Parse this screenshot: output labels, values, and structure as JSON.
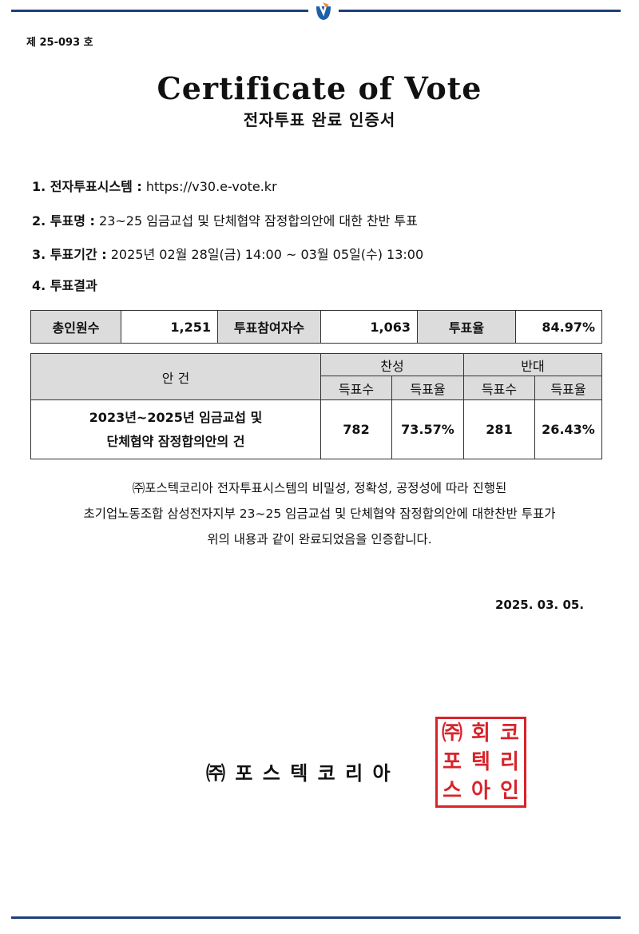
{
  "header": {
    "doc_number": "제 25-093 호",
    "title": "Certificate of Vote",
    "subtitle": "전자투표 완료 인증서",
    "rule_color": "#1f3f7a"
  },
  "items": [
    {
      "label": "1. 전자투표시스템 :",
      "value": "https://v30.e-vote.kr"
    },
    {
      "label": "2. 투표명 :",
      "value": "23~25 임금교섭 및 단체협약 잠정합의안에 대한 찬반 투표"
    },
    {
      "label": "3. 투표기간 :",
      "value": "2025년 02월 28일(금) 14:00 ~ 03월 05일(수) 13:00"
    },
    {
      "label": "4. 투표결과",
      "value": ""
    }
  ],
  "summary": {
    "total_label": "총인원수",
    "total": "1,251",
    "participants_label": "투표참여자수",
    "participants": "1,063",
    "rate_label": "투표율",
    "rate": "84.97%"
  },
  "results": {
    "agenda_header": "안 건",
    "yes_header": "찬성",
    "no_header": "반대",
    "sub_headers": [
      "득표수",
      "득표율",
      "득표수",
      "득표율"
    ],
    "rows": [
      {
        "agenda_line1": "2023년~2025년 임금교섭 및",
        "agenda_line2": "단체협약 잠정합의안의 건",
        "yes_votes": "782",
        "yes_rate": "73.57%",
        "no_votes": "281",
        "no_rate": "26.43%"
      }
    ]
  },
  "statement": [
    "㈜포스텍코리아 전자투표시스템의 비밀성, 정확성, 공정성에 따라 진행된",
    "초기업노동조합 삼성전자지부 23~25 임금교섭 및 단체협약 잠정합의안에 대한찬반 투표가",
    "위의 내용과 같이 완료되었음을 인증합니다."
  ],
  "date": "2025. 03. 05.",
  "company": "㈜ 포 스 텍 코 리 아",
  "seal": {
    "text": "㈜포스텍코리아회사인",
    "color": "#d8242b"
  }
}
